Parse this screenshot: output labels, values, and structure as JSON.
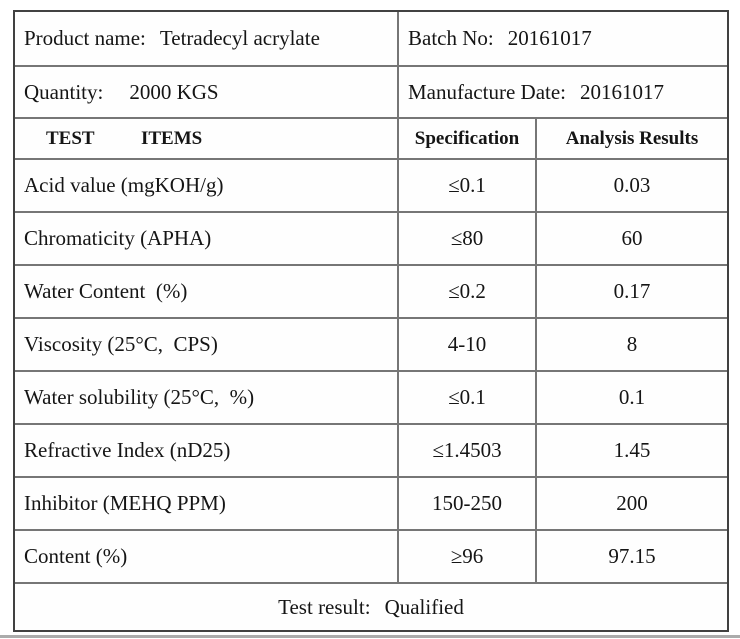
{
  "info": {
    "product": {
      "label": "Product name:",
      "value": "Tetradecyl acrylate"
    },
    "batch": {
      "label": "Batch No:",
      "value": "20161017"
    },
    "quantity": {
      "label": "Quantity:",
      "value": "2000 KGS"
    },
    "manufacture_date": {
      "label": "Manufacture Date:",
      "value": "20161017"
    }
  },
  "columns": {
    "test_items": "TEST ITEMS",
    "specification": "Specification",
    "analysis_results": "Analysis Results"
  },
  "rows": [
    {
      "item": "Acid value (mgKOH/g)",
      "spec": "≤0.1",
      "result": "0.03"
    },
    {
      "item": "Chromaticity (APHA)",
      "spec": "≤80",
      "result": "60"
    },
    {
      "item": "Water Content  (%)",
      "spec": "≤0.2",
      "result": "0.17"
    },
    {
      "item": "Viscosity (25°C,  CPS)",
      "spec": "4-10",
      "result": "8"
    },
    {
      "item": "Water solubility (25°C,  %)",
      "spec": "≤0.1",
      "result": "0.1"
    },
    {
      "item": "Refractive Index (nD25)",
      "spec": "≤1.4503",
      "result": "1.45"
    },
    {
      "item": "Inhibitor (MEHQ PPM)",
      "spec": "150-250",
      "result": "200"
    },
    {
      "item": "Content (%)",
      "spec": "≥96",
      "result": "97.15"
    }
  ],
  "footer": {
    "label": "Test result:",
    "value": "Qualified"
  },
  "colors": {
    "outer_border": "#414141",
    "grid_line": "#767676",
    "text": "#151515",
    "scan_edge": "#ababab"
  }
}
